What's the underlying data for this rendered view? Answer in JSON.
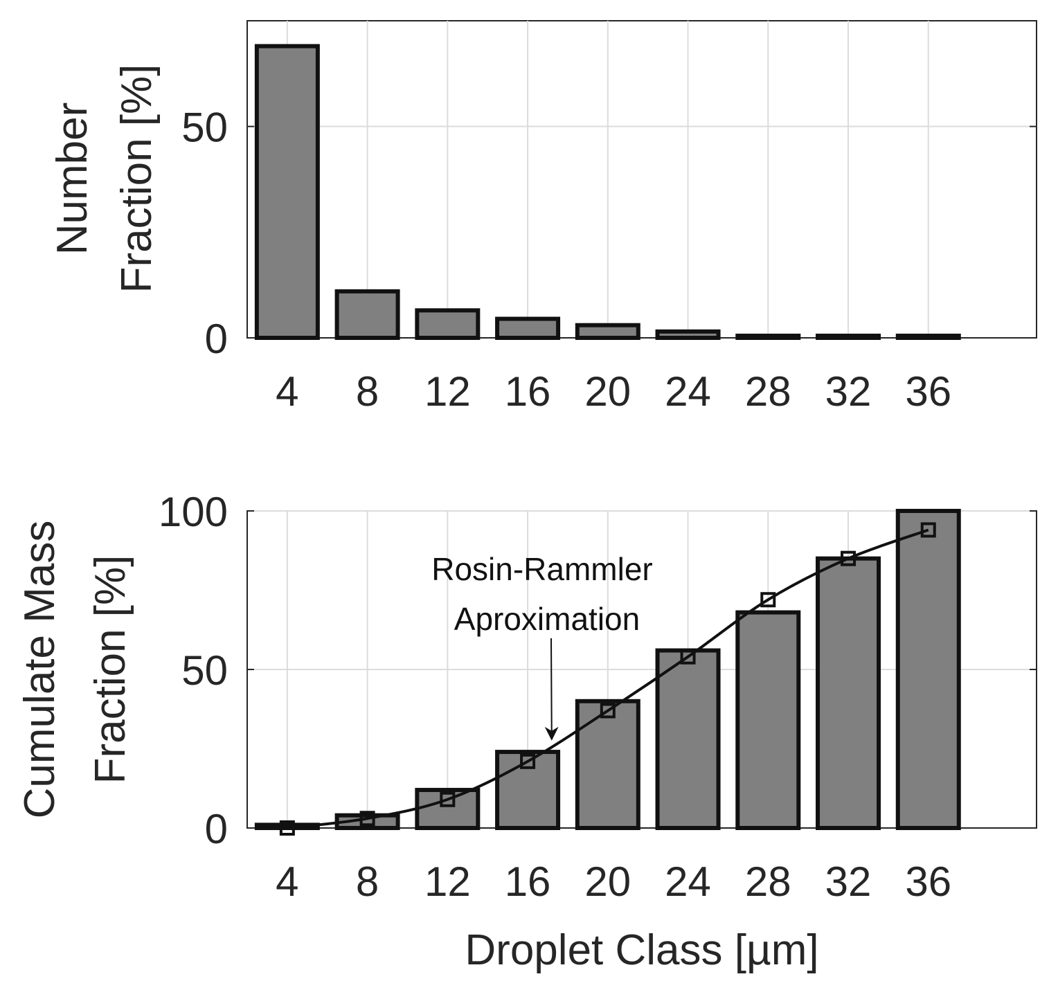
{
  "chart_data": [
    {
      "type": "bar",
      "categories": [
        "4",
        "8",
        "12",
        "16",
        "20",
        "24",
        "28",
        "32",
        "36"
      ],
      "values": [
        69,
        11,
        6.5,
        4.5,
        3,
        1.5,
        0.5,
        0.5,
        0.5
      ],
      "ylabel": [
        "Number",
        "Fraction [%]"
      ],
      "xlabel": "",
      "ylim": [
        0,
        75
      ],
      "yticks": [
        0,
        50
      ],
      "grid": true,
      "bar_color": "#808080"
    },
    {
      "type": "bar",
      "categories": [
        "4",
        "8",
        "12",
        "16",
        "20",
        "24",
        "28",
        "32",
        "36"
      ],
      "values": [
        1,
        4,
        12,
        24,
        40,
        56,
        68,
        85,
        100
      ],
      "ylabel": [
        "Cumulate Mass",
        "Fraction [%]"
      ],
      "xlabel": "Droplet Class [µm]",
      "ylim": [
        0,
        100
      ],
      "yticks": [
        0,
        50,
        100
      ],
      "grid": true,
      "bar_color": "#808080",
      "series": [
        {
          "type": "line",
          "marker": "square",
          "x": [
            4,
            8,
            12,
            16,
            20,
            24,
            28,
            32,
            36
          ],
          "values": [
            0,
            3,
            9,
            21,
            37,
            54,
            72,
            85,
            94
          ]
        }
      ],
      "annotation": {
        "lines": [
          "Rosin-Rammler",
          "Aproximation"
        ],
        "points_to_x": 17.2,
        "points_to_y": 28
      }
    }
  ]
}
